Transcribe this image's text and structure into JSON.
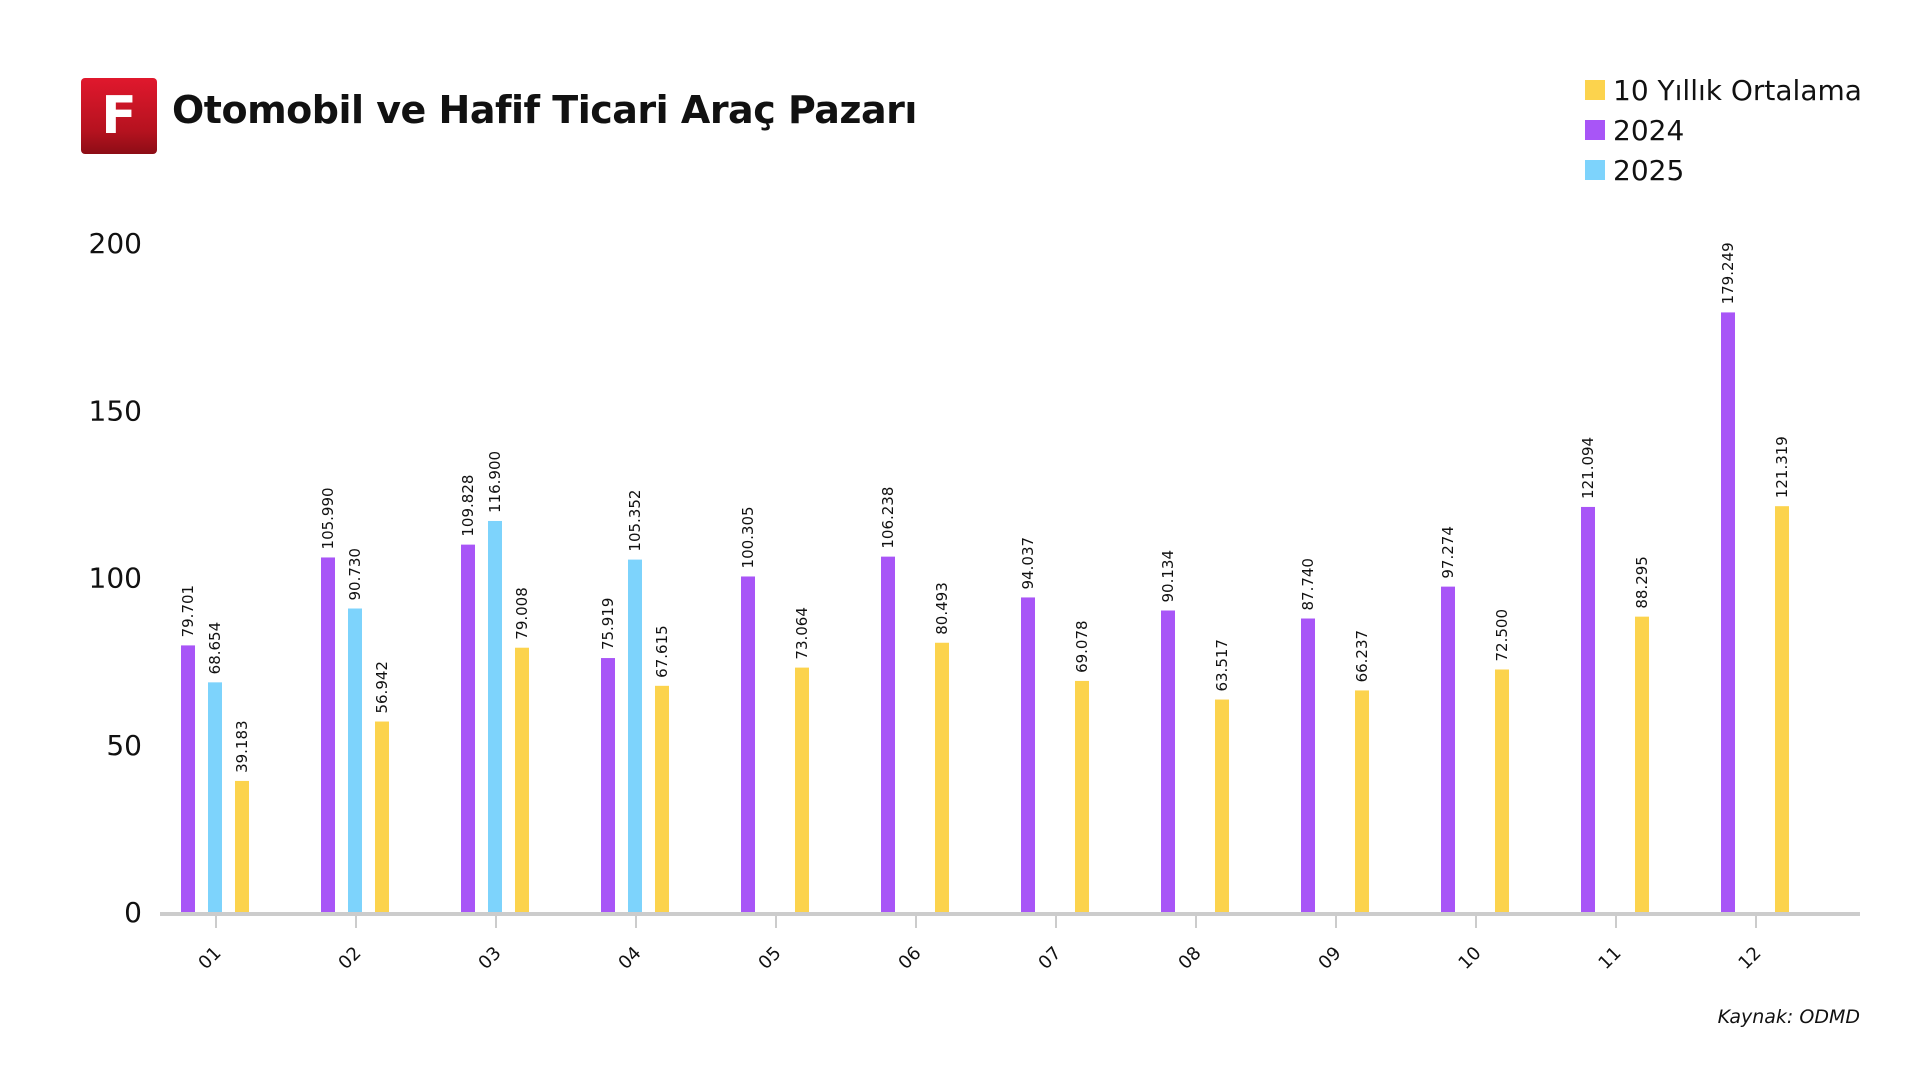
{
  "header": {
    "logo_letter": "F",
    "title": "Otomobil ve Hafif Ticari Araç Pazarı"
  },
  "source": "Kaynak: ODMD",
  "chart_data": {
    "type": "bar",
    "title": "Otomobil ve Hafif Ticari Araç Pazarı",
    "xlabel": "",
    "ylabel": "",
    "categories": [
      "01",
      "02",
      "03",
      "04",
      "05",
      "06",
      "07",
      "08",
      "09",
      "10",
      "11",
      "12"
    ],
    "ylim": [
      0,
      200
    ],
    "yticks": [
      0,
      50,
      100,
      150,
      200
    ],
    "grid": false,
    "legend_position": "top-right",
    "series": [
      {
        "name": "2024",
        "color": "#a855f7",
        "values": [
          79.701,
          105.99,
          109.828,
          75.919,
          100.305,
          106.238,
          94.037,
          90.134,
          87.74,
          97.274,
          121.094,
          179.249
        ],
        "labels": [
          "79.701",
          "105.990",
          "109.828",
          "75.919",
          "100.305",
          "106.238",
          "94.037",
          "90.134",
          "87.740",
          "97.274",
          "121.094",
          "179.249"
        ]
      },
      {
        "name": "2025",
        "color": "#7dd3fc",
        "values": [
          68.654,
          90.73,
          116.9,
          105.352,
          null,
          null,
          null,
          null,
          null,
          null,
          null,
          null
        ],
        "labels": [
          "68.654",
          "90.730",
          "116.900",
          "105.352",
          null,
          null,
          null,
          null,
          null,
          null,
          null,
          null
        ]
      },
      {
        "name": "10 Yıllık Ortalama",
        "color": "#fcd34d",
        "values": [
          39.183,
          56.942,
          79.008,
          67.615,
          73.064,
          80.493,
          69.078,
          63.517,
          66.237,
          72.5,
          88.295,
          121.319
        ],
        "labels": [
          "39.183",
          "56.942",
          "79.008",
          "67.615",
          "73.064",
          "80.493",
          "69.078",
          "63.517",
          "66.237",
          "72.500",
          "88.295",
          "121.319"
        ]
      }
    ],
    "legend": [
      {
        "name": "10 Yıllık Ortalama",
        "color": "#fcd34d"
      },
      {
        "name": "2024",
        "color": "#a855f7"
      },
      {
        "name": "2025",
        "color": "#7dd3fc"
      }
    ]
  }
}
